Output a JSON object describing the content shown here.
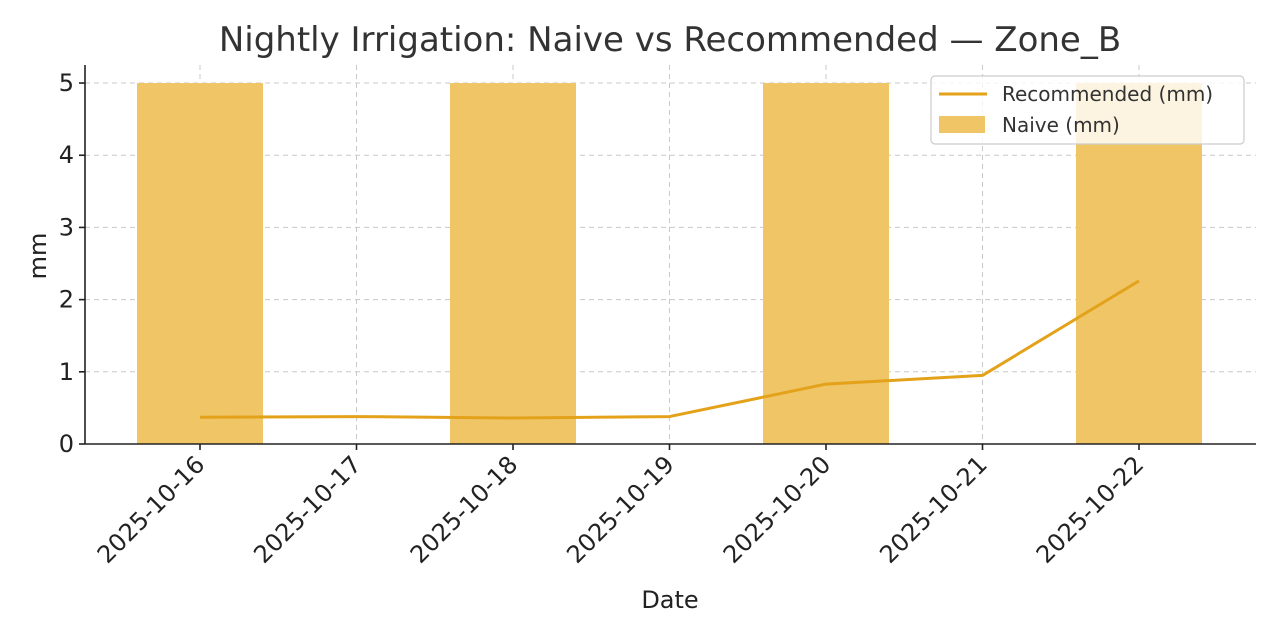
{
  "chart_data": {
    "type": "bar",
    "title": "Nightly Irrigation: Naive vs Recommended — Zone_B",
    "xlabel": "Date",
    "ylabel": "mm",
    "categories": [
      "2025-10-16",
      "2025-10-17",
      "2025-10-18",
      "2025-10-19",
      "2025-10-20",
      "2025-10-21",
      "2025-10-22"
    ],
    "yticks": [
      "0",
      "1",
      "2",
      "3",
      "4",
      "5"
    ],
    "ylim": [
      0,
      5.25
    ],
    "grid": true,
    "legend_position": "top-right",
    "series": [
      {
        "name": "Recommended (mm)",
        "kind": "line",
        "color": "#e3a21a",
        "values": [
          0.37,
          0.38,
          0.36,
          0.38,
          0.83,
          0.95,
          2.26
        ]
      },
      {
        "name": "Naive (mm)",
        "kind": "bar",
        "color": "#efc566",
        "values": [
          5,
          0,
          5,
          0,
          5,
          0,
          5
        ]
      }
    ]
  }
}
